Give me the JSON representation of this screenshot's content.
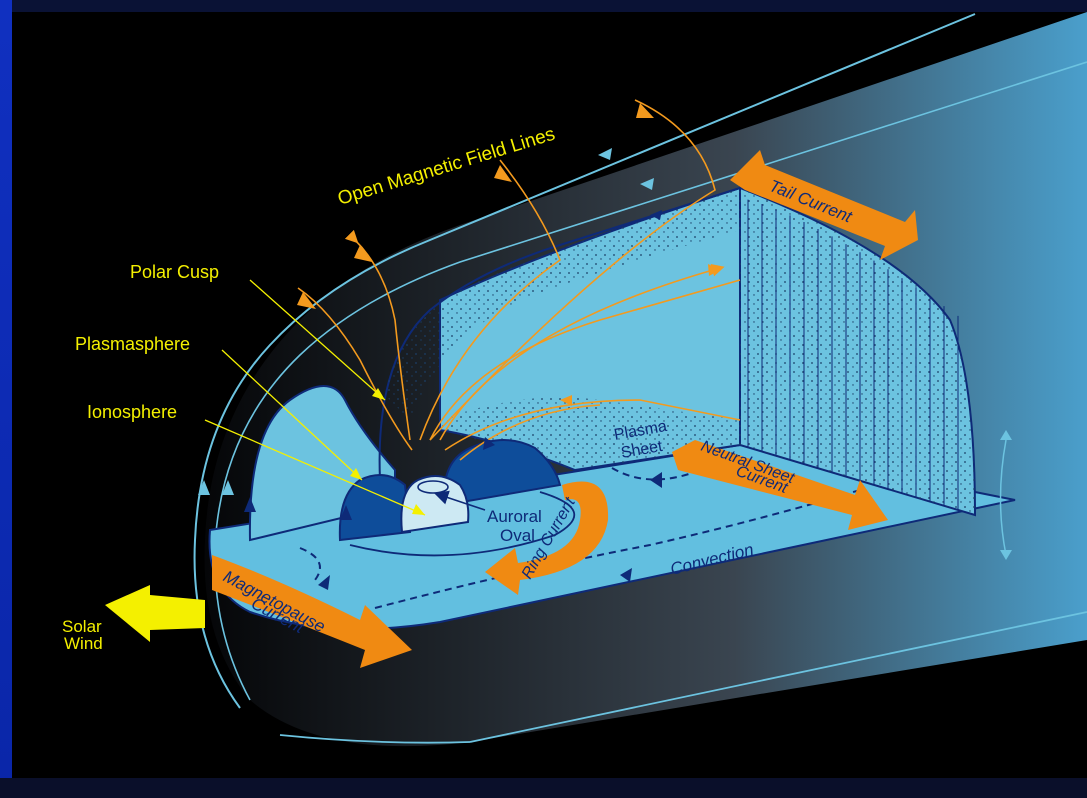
{
  "labels": {
    "open_field_lines": "Open Magnetic Field Lines",
    "polar_cusp": "Polar Cusp",
    "plasmasphere": "Plasmasphere",
    "ionosphere": "Ionosphere",
    "tail_current": "Tail Current",
    "plasma_sheet_1": "Plasma",
    "plasma_sheet_2": "Sheet",
    "neutral_sheet_1": "Neutral Sheet",
    "neutral_sheet_2": "Current",
    "auroral_1": "Auroral",
    "auroral_2": "Oval",
    "ring_current": "Ring Current",
    "convection": "Convection",
    "magnetopause_1": "Magnetopause",
    "magnetopause_2": "Current",
    "solar_1": "Solar",
    "solar_2": "Wind"
  },
  "colors": {
    "label_yellow": "#f4f000",
    "magnetosphere_blue": "#6cc3e0",
    "field_line_orange": "#f39a1e",
    "current_arrow_orange": "#f08a12",
    "dark_blue": "#0e2a78"
  }
}
